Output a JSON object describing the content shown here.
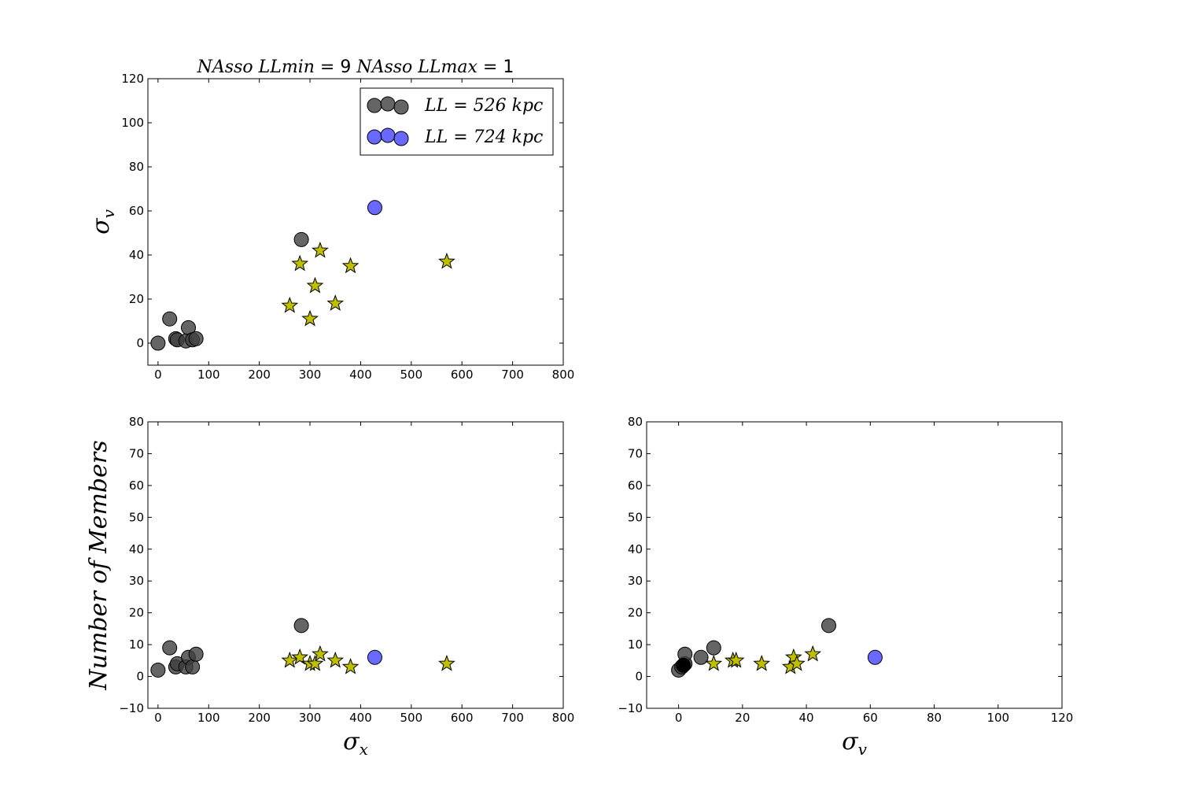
{
  "colors": {
    "group_526": "#3f3f3f",
    "group_724": "#4444ff",
    "stars": "#bfbf00",
    "black": "#000000"
  },
  "title": {
    "part1_var": "NAsso LLmin",
    "part1_eq": "= ",
    "part1_val": "9",
    "part2_var": "NAsso LLmax",
    "part2_eq": "= ",
    "part2_val": "1"
  },
  "legend": {
    "entries": [
      {
        "label": "LL = 526 kpc",
        "color_key": "group_526"
      },
      {
        "label": "LL = 724 kpc",
        "color_key": "group_724"
      }
    ],
    "position": "upper-right"
  },
  "labels": {
    "y_top": "σ",
    "y_top_sub": "v",
    "y_bottom": "Number of Members",
    "x_left": "σ",
    "x_left_sub": "x",
    "x_right": "σ",
    "x_right_sub": "v"
  },
  "chart_data": [
    {
      "type": "scatter",
      "panel": "top-left",
      "xlim": [
        -20,
        800
      ],
      "ylim": [
        -10,
        120
      ],
      "xticks": [
        0,
        100,
        200,
        300,
        400,
        500,
        600,
        700,
        800
      ],
      "yticks": [
        0,
        20,
        40,
        60,
        80,
        100,
        120
      ],
      "series": [
        {
          "name": "LL = 526 kpc",
          "marker": "circle",
          "color_key": "group_526",
          "x": [
            0,
            23,
            35,
            38,
            55,
            60,
            68,
            75,
            283
          ],
          "y": [
            0,
            11,
            2,
            1.5,
            1,
            7,
            1.5,
            2,
            47
          ]
        },
        {
          "name": "LL = 724 kpc",
          "marker": "circle",
          "color_key": "group_724",
          "x": [
            428
          ],
          "y": [
            61.5
          ]
        },
        {
          "marker": "star",
          "color_key": "stars",
          "x": [
            260,
            280,
            300,
            310,
            320,
            350,
            380,
            570
          ],
          "y": [
            17,
            36,
            11,
            26,
            42,
            18,
            35,
            37
          ]
        }
      ]
    },
    {
      "type": "scatter",
      "panel": "bottom-left",
      "xlim": [
        -20,
        800
      ],
      "ylim": [
        -10,
        80
      ],
      "xticks": [
        0,
        100,
        200,
        300,
        400,
        500,
        600,
        700,
        800
      ],
      "yticks": [
        -10,
        0,
        10,
        20,
        30,
        40,
        50,
        60,
        70,
        80
      ],
      "series": [
        {
          "name": "LL = 526 kpc",
          "marker": "circle",
          "color_key": "group_526",
          "x": [
            0,
            23,
            35,
            38,
            55,
            60,
            68,
            75,
            283
          ],
          "y": [
            2,
            9,
            3,
            4,
            3,
            6,
            3,
            7,
            16
          ]
        },
        {
          "name": "LL = 724 kpc",
          "marker": "circle",
          "color_key": "group_724",
          "x": [
            428
          ],
          "y": [
            6
          ]
        },
        {
          "marker": "star",
          "color_key": "stars",
          "x": [
            260,
            280,
            300,
            310,
            320,
            350,
            380,
            570
          ],
          "y": [
            5,
            6,
            4,
            4,
            7,
            5,
            3,
            4
          ]
        }
      ]
    },
    {
      "type": "scatter",
      "panel": "bottom-right",
      "xlim": [
        -10,
        120
      ],
      "ylim": [
        -10,
        80
      ],
      "xticks": [
        0,
        20,
        40,
        60,
        80,
        100,
        120
      ],
      "yticks": [
        -10,
        0,
        10,
        20,
        30,
        40,
        50,
        60,
        70,
        80
      ],
      "series": [
        {
          "name": "LL = 526 kpc",
          "marker": "circle",
          "color_key": "group_526",
          "x": [
            0,
            1,
            2,
            2,
            7,
            11,
            47
          ],
          "y": [
            2,
            3,
            4,
            7,
            6,
            9,
            16
          ]
        },
        {
          "marker": "circle",
          "color_key": "black",
          "x": [
            1.5
          ],
          "y": [
            3.5
          ]
        },
        {
          "name": "LL = 724 kpc",
          "marker": "circle",
          "color_key": "group_724",
          "x": [
            61.5
          ],
          "y": [
            6
          ]
        },
        {
          "marker": "star",
          "color_key": "stars",
          "x": [
            11,
            17,
            18,
            26,
            35,
            36,
            37,
            42
          ],
          "y": [
            4,
            5,
            5,
            4,
            3,
            6,
            4,
            7
          ]
        }
      ]
    }
  ]
}
